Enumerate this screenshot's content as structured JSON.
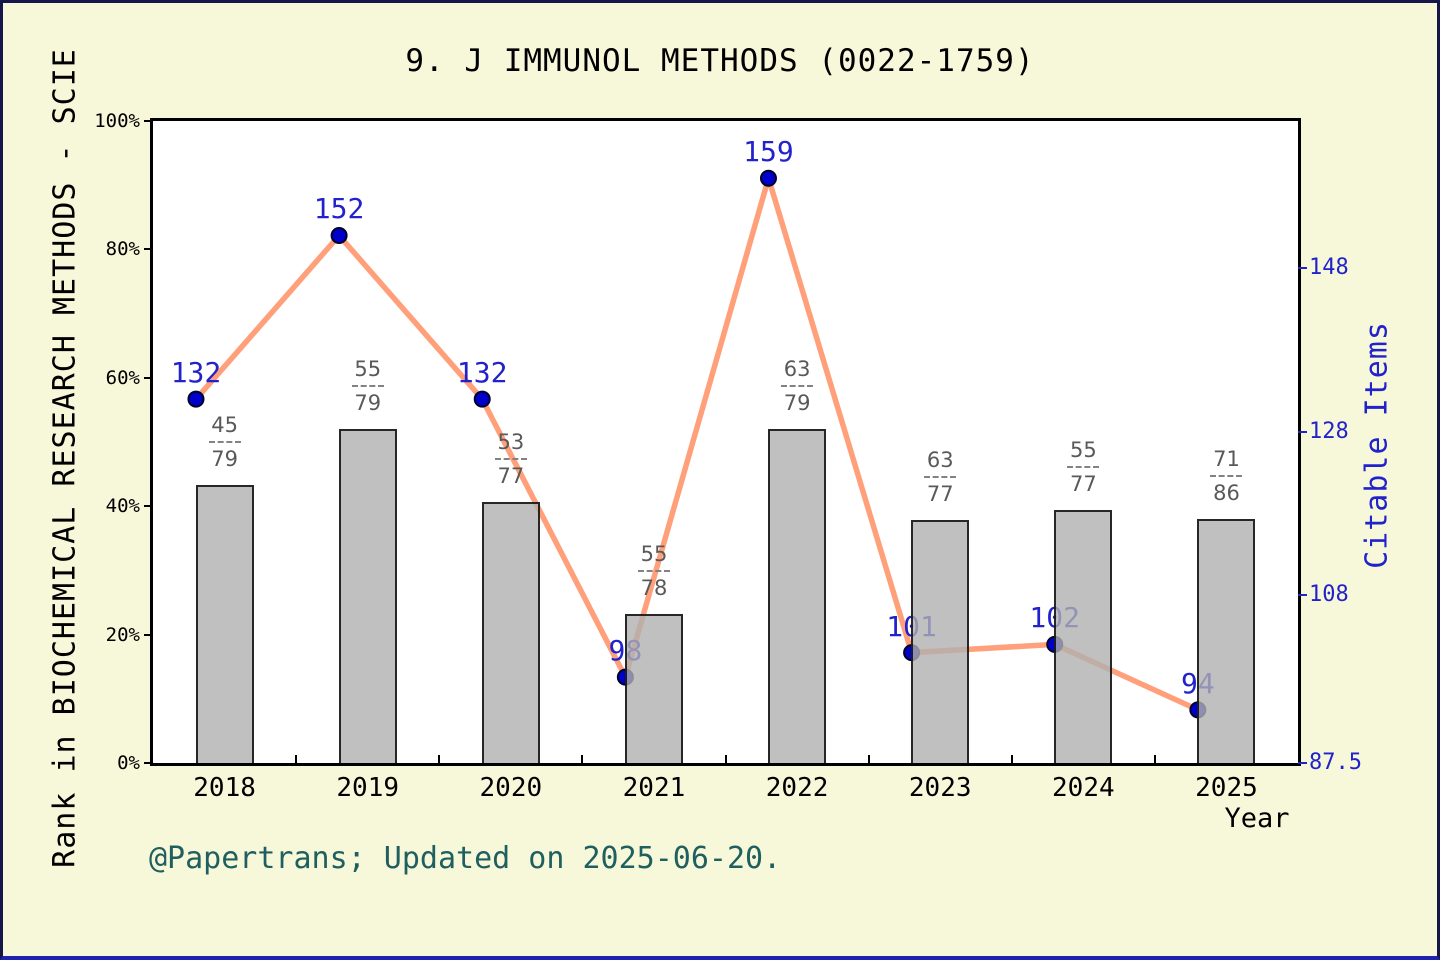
{
  "page": {
    "background_color": "#F7F7DA",
    "plot_background_color": "#FFFFFF",
    "border_color": "#16164a"
  },
  "chart_data": {
    "type": "combo",
    "title": "9. J IMMUNOL METHODS (0022-1759)",
    "xlabel": "Year",
    "ylabel_left": "Rank in BIOCHEMICAL RESEARCH METHODS - SCIE",
    "ylabel_right": "Citable Items",
    "footer": "@Papertrans; Updated on 2025-06-20.",
    "grid": false,
    "legend": "none",
    "categories": [
      "2018",
      "2019",
      "2020",
      "2021",
      "2022",
      "2023",
      "2024",
      "2025"
    ],
    "left_axis": {
      "tick_labels": [
        "0%",
        "20%",
        "40%",
        "60%",
        "80%",
        "100%"
      ],
      "tick_values": [
        0,
        20,
        40,
        60,
        80,
        100
      ],
      "range": [
        0,
        100
      ]
    },
    "right_axis": {
      "tick_labels": [
        "87.5",
        "108",
        "128",
        "148"
      ],
      "tick_values": [
        87.5,
        108,
        128,
        148
      ],
      "range": [
        87.5,
        166
      ]
    },
    "series": [
      {
        "name": "rank-fraction-bars",
        "type": "bar",
        "fractions": [
          {
            "numerator": "45",
            "denominator": "79"
          },
          {
            "numerator": "55",
            "denominator": "79"
          },
          {
            "numerator": "53",
            "denominator": "77"
          },
          {
            "numerator": "55",
            "denominator": "78"
          },
          {
            "numerator": "63",
            "denominator": "79"
          },
          {
            "numerator": "63",
            "denominator": "77"
          },
          {
            "numerator": "55",
            "denominator": "77"
          },
          {
            "numerator": "71",
            "denominator": "86"
          }
        ],
        "bar_top_percent": [
          43.3,
          52.0,
          40.7,
          23.2,
          52.0,
          37.9,
          39.4,
          38.0
        ]
      },
      {
        "name": "Citable Items",
        "type": "line",
        "values": [
          132,
          152,
          132,
          98,
          159,
          101,
          102,
          94
        ],
        "x_offset_years": -0.2
      }
    ],
    "colors": {
      "line": "#FFA07A",
      "dot_fill": "#0000CD",
      "dot_edge": "#000028",
      "blue_text": "#2222CC",
      "bar_fill": "rgba(176,176,176,0.8)",
      "bar_edge": "rgba(0,0,0,0.8)",
      "fraction_text": "#595959",
      "footer_text": "#1F5F5F"
    }
  }
}
